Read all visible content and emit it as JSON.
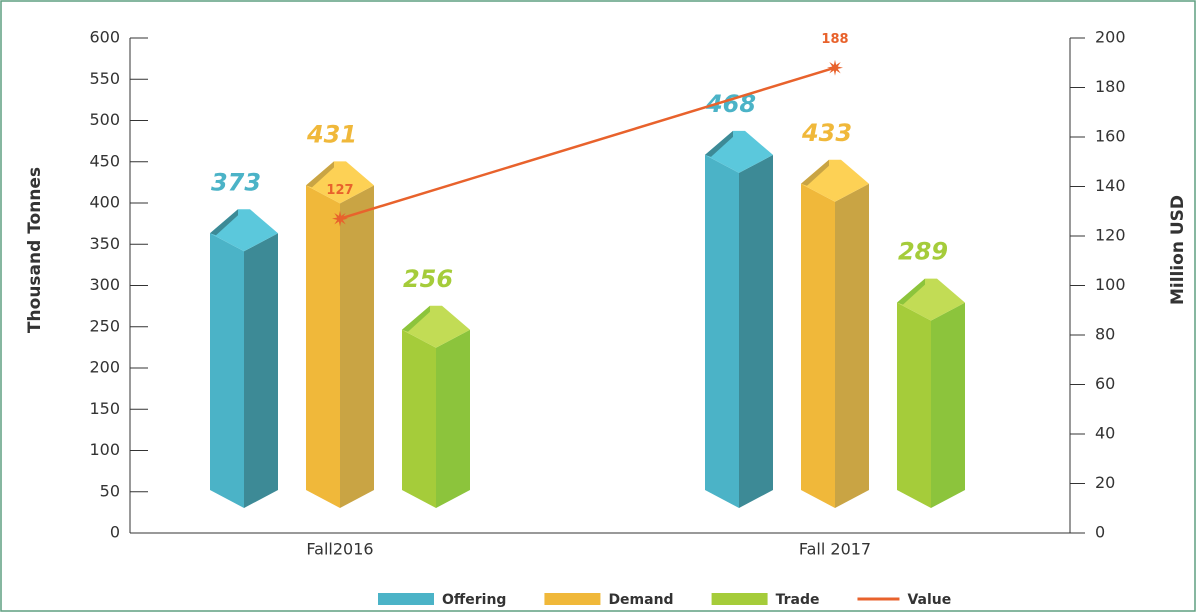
{
  "chart_data": {
    "type": "bar3d_line",
    "categories": [
      "Fall2016",
      "Fall 2017"
    ],
    "series": [
      {
        "name": "Offering",
        "color": "#4bb3c7",
        "values": [
          373,
          468
        ]
      },
      {
        "name": "Demand",
        "color": "#f0b83a",
        "values": [
          431,
          433
        ]
      },
      {
        "name": "Trade",
        "color": "#a5cc3a",
        "values": [
          256,
          289
        ]
      },
      {
        "name": "Value",
        "color": "#e8622c",
        "values": [
          127,
          188
        ],
        "axis": "y2"
      }
    ],
    "ylabel": "Thousand Tonnes",
    "y2label": "Million USD",
    "ylim": [
      0,
      600
    ],
    "yticks": [
      0,
      50,
      100,
      150,
      200,
      250,
      300,
      350,
      400,
      450,
      500,
      550,
      600
    ],
    "y2lim": [
      0,
      200
    ],
    "y2ticks": [
      0,
      20,
      40,
      60,
      80,
      100,
      120,
      140,
      160,
      180,
      200
    ],
    "legend": "bottom"
  }
}
